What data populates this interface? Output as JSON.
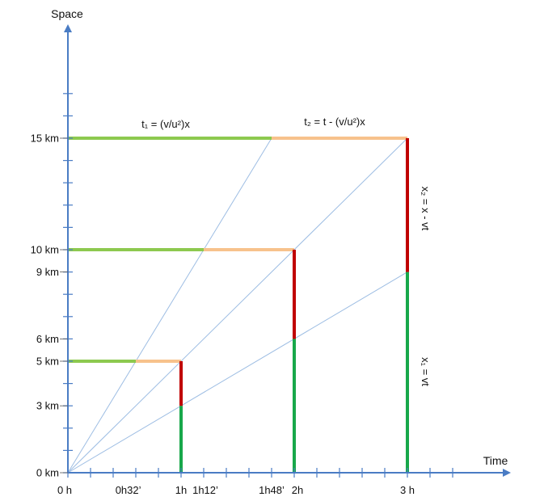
{
  "axes": {
    "x_title": "Time",
    "y_title": "Space",
    "x_tick_labels": [
      "0 h",
      "0h32’",
      "1h",
      "1h12’",
      "1h48’",
      "2h",
      "3 h"
    ],
    "y_tick_labels": [
      "0 km",
      "3 km",
      "5 km",
      "6 km",
      "9 km",
      "10 km",
      "15 km"
    ]
  },
  "formulas": {
    "t1": "t₁ = (v/u²)x",
    "t2": "t₂ = t - (v/u²)x",
    "x2": "x₂ = x - vt",
    "x1": "x₁ = vt"
  },
  "colors": {
    "axis": "#4a7cc4",
    "guide_line": "#9dbde3",
    "t1_segment": "#8dc94f",
    "t2_segment": "#f7c28c",
    "x2_segment": "#c00000",
    "x1_segment": "#18a84a"
  },
  "chart_data": {
    "type": "line",
    "x_unit": "h",
    "y_unit": "km",
    "xlim": [
      0,
      3.6
    ],
    "ylim": [
      0,
      17.5
    ],
    "x_ticks": [
      0,
      0.2,
      0.4,
      0.6,
      0.8,
      1,
      1.2,
      1.4,
      1.6,
      1.8,
      2,
      2.2,
      2.4,
      2.6,
      2.8,
      3,
      3.2,
      3.4
    ],
    "x_labeled_ticks": [
      0,
      0.533,
      1,
      1.2,
      1.8,
      2,
      3
    ],
    "y_ticks": [
      0,
      1,
      2,
      3,
      4,
      5,
      6,
      7,
      8,
      9,
      10,
      11,
      12,
      13,
      14,
      15,
      16,
      17
    ],
    "y_labeled_ticks": [
      0,
      3,
      5,
      6,
      9,
      10,
      15
    ],
    "guide_lines": [
      {
        "from": [
          0,
          0
        ],
        "to": [
          1.8,
          15
        ]
      },
      {
        "from": [
          0,
          0
        ],
        "to": [
          3,
          15
        ]
      },
      {
        "from": [
          0,
          0
        ],
        "to": [
          3,
          9
        ]
      }
    ],
    "t1_segments": [
      {
        "y": 15,
        "x": [
          0,
          1.8
        ]
      },
      {
        "y": 10,
        "x": [
          0,
          1.2
        ]
      },
      {
        "y": 5,
        "x": [
          0,
          0.6
        ]
      }
    ],
    "t2_segments": [
      {
        "y": 15,
        "x": [
          1.8,
          3
        ]
      },
      {
        "y": 10,
        "x": [
          1.2,
          2
        ]
      },
      {
        "y": 5,
        "x": [
          0.6,
          1
        ]
      }
    ],
    "x2_segments": [
      {
        "x": 3,
        "y": [
          9,
          15
        ]
      },
      {
        "x": 2,
        "y": [
          6,
          10
        ]
      },
      {
        "x": 1,
        "y": [
          3,
          5
        ]
      }
    ],
    "x1_segments": [
      {
        "x": 3,
        "y": [
          0,
          9
        ]
      },
      {
        "x": 2,
        "y": [
          0,
          6
        ]
      },
      {
        "x": 1,
        "y": [
          0,
          3
        ]
      }
    ]
  }
}
